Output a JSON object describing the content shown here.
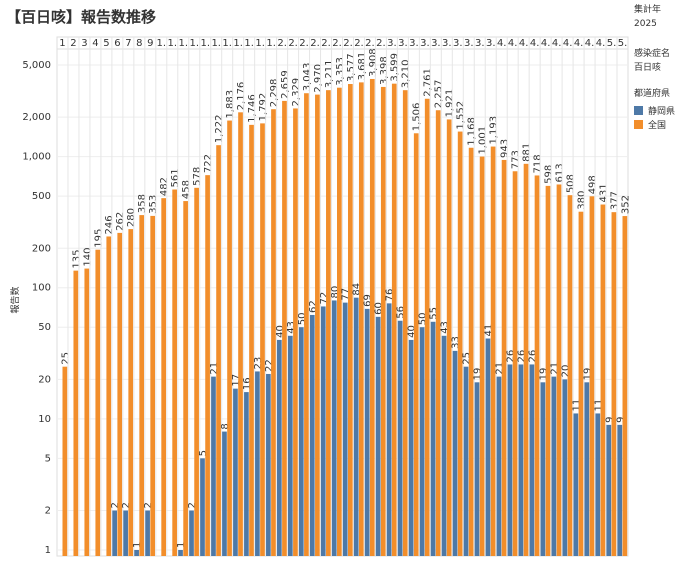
{
  "chart_data": {
    "type": "bar",
    "title": "【百日咳】報告数推移",
    "y_label": "報告数",
    "filters": [
      {
        "label": "集計年",
        "value": "2025"
      },
      {
        "label": "感染症名",
        "value": "百日咳"
      }
    ],
    "legend_title": "都道府県",
    "categories": [
      "1",
      "2",
      "3",
      "4",
      "5",
      "6",
      "7",
      "8",
      "9",
      "1.",
      "1.",
      "1.",
      "1.",
      "1.",
      "1.",
      "1.",
      "1.",
      "1.",
      "1.",
      "1.",
      "2.",
      "2.",
      "2.",
      "2.",
      "2.",
      "2.",
      "2.",
      "2.",
      "2.",
      "2.",
      "3.",
      "3.",
      "3.",
      "3.",
      "3.",
      "3.",
      "3.",
      "3.",
      "3.",
      "3.",
      "4.",
      "4.",
      "4.",
      "4.",
      "4.",
      "4.",
      "4.",
      "4.",
      "4.",
      "4.",
      "5.",
      "5."
    ],
    "series": [
      {
        "name": "静岡県",
        "color": "#4e79a7",
        "values": [
          null,
          null,
          null,
          null,
          null,
          2,
          2,
          1,
          2,
          null,
          null,
          1,
          2,
          5,
          21,
          8,
          17,
          16,
          23,
          22,
          40,
          43,
          50,
          62,
          72,
          80,
          77,
          84,
          69,
          60,
          76,
          56,
          40,
          50,
          55,
          43,
          33,
          25,
          19,
          41,
          21,
          26,
          26,
          26,
          19,
          21,
          20,
          11,
          19,
          11,
          9,
          9
        ]
      },
      {
        "name": "全国",
        "color": "#f28e2b",
        "values": [
          25,
          135,
          140,
          195,
          246,
          262,
          280,
          358,
          353,
          482,
          561,
          458,
          578,
          722,
          1222,
          1883,
          2176,
          1746,
          1792,
          2298,
          2659,
          2329,
          3043,
          2970,
          3211,
          3353,
          3577,
          3681,
          3908,
          3398,
          3599,
          3210,
          1506,
          2761,
          2257,
          1921,
          1552,
          1168,
          1001,
          1193,
          943,
          773,
          881,
          718,
          598,
          613,
          508,
          380,
          498,
          431,
          377,
          352
        ],
        "value_labels": [
          "25",
          "135",
          "140",
          "195",
          "246",
          "262",
          "280",
          "358",
          "353",
          "482",
          "561",
          "458",
          "578",
          "722",
          "1,222",
          "1,883",
          "2,176",
          "1,746",
          "1,792",
          "2,298",
          "2,659",
          "2,329",
          "3,043",
          "2,970",
          "3,211",
          "3,353",
          "3,577",
          "3,681",
          "3,908",
          "3,398",
          "3,599",
          "3,210",
          "1,506",
          "2,761",
          "2,257",
          "1,921",
          "1,552",
          "1,168",
          "1,001",
          "1,193",
          "943",
          "773",
          "881",
          "718",
          "598",
          "613",
          "508",
          "380",
          "498",
          "431",
          "377",
          "352"
        ]
      }
    ],
    "log_scale": true,
    "ylim": [
      0.9,
      6500
    ],
    "yticks": [
      1,
      2,
      5,
      10,
      20,
      50,
      100,
      200,
      500,
      {
        "value": 1000,
        "label": "1,000"
      },
      {
        "value": 2000,
        "label": "2,000"
      },
      {
        "value": 5000,
        "label": "5,000"
      }
    ],
    "grid": true
  }
}
